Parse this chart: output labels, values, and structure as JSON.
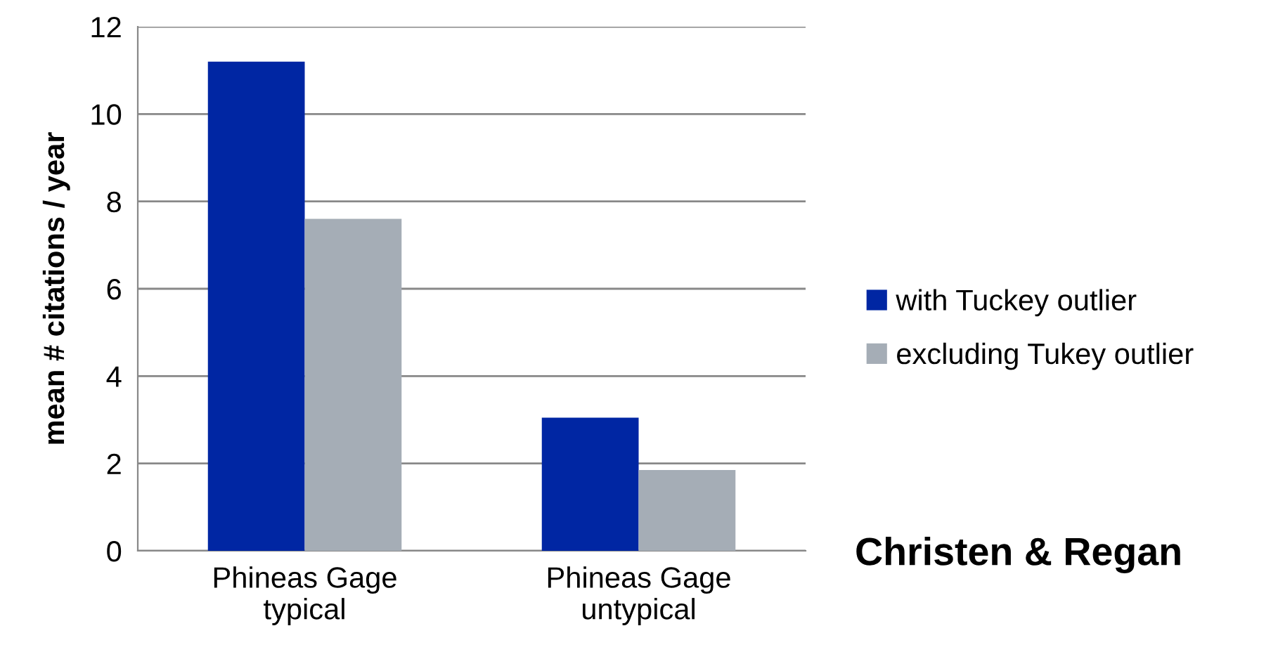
{
  "chart_data": {
    "type": "bar",
    "ylabel": "mean # citations / year",
    "categories": [
      "Phineas Gage\ntypical",
      "Phineas Gage\nuntypical"
    ],
    "series": [
      {
        "name": "with Tuckey outlier",
        "color": "#0026a3",
        "values": [
          11.2,
          3.05
        ]
      },
      {
        "name": "excluding Tukey outlier",
        "color": "#a5adb6",
        "values": [
          7.6,
          1.85
        ]
      }
    ],
    "ylim": [
      0,
      12
    ],
    "yticks": [
      0,
      2,
      4,
      6,
      8,
      10,
      12
    ],
    "grid": "y",
    "legend": "right",
    "annotations": [
      "Christen & Regan"
    ]
  }
}
